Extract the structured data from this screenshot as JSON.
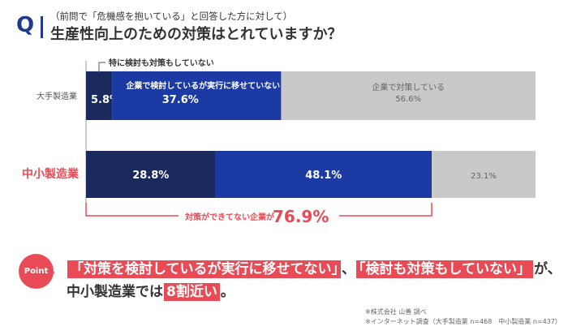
{
  "question": {
    "mark": "Q",
    "subtitle": "（前問で「危機感を抱いている」と回答した方に対して）",
    "title": "生産性向上のための対策はとれていますか？"
  },
  "chart_data": {
    "type": "bar",
    "orientation": "horizontal",
    "stacked": true,
    "categories": [
      "大手製造業",
      "中小製造業"
    ],
    "series": [
      {
        "name": "特に検討も対策もしていない",
        "values": [
          5.8,
          28.8
        ],
        "color": "#1a2a5e"
      },
      {
        "name": "企業で検討しているが実行に移せていない",
        "values": [
          37.6,
          48.1
        ],
        "color": "#1c3aa3"
      },
      {
        "name": "企業で対策している",
        "values": [
          56.6,
          23.1
        ],
        "color": "#c9c9c9"
      }
    ],
    "value_labels": [
      [
        "5.8%",
        "37.6%",
        "56.6%"
      ],
      [
        "28.8%",
        "48.1%",
        "23.1%"
      ]
    ],
    "xlim": [
      0,
      100
    ],
    "annotation": {
      "prefix": "対策ができてない企業が",
      "value": "76.9%"
    }
  },
  "point": {
    "badge": "Point",
    "line1_q1": "「対策を検討しているが実行に移せてない」",
    "line1_sep": "、",
    "line1_q2": "「検討も対策もしていない」",
    "line1_end": "が、",
    "line2_a": "中小製造業では",
    "line2_hl": "8割近い",
    "line2_end": "。"
  },
  "notes": {
    "line1": "※株式会社 山善 調べ",
    "line2": "※インターネット調査（大手製造業 n=468　中小製造業 n=437）"
  },
  "colors": {
    "accent_red": "#e84b55",
    "navy": "#1f3a8a"
  }
}
